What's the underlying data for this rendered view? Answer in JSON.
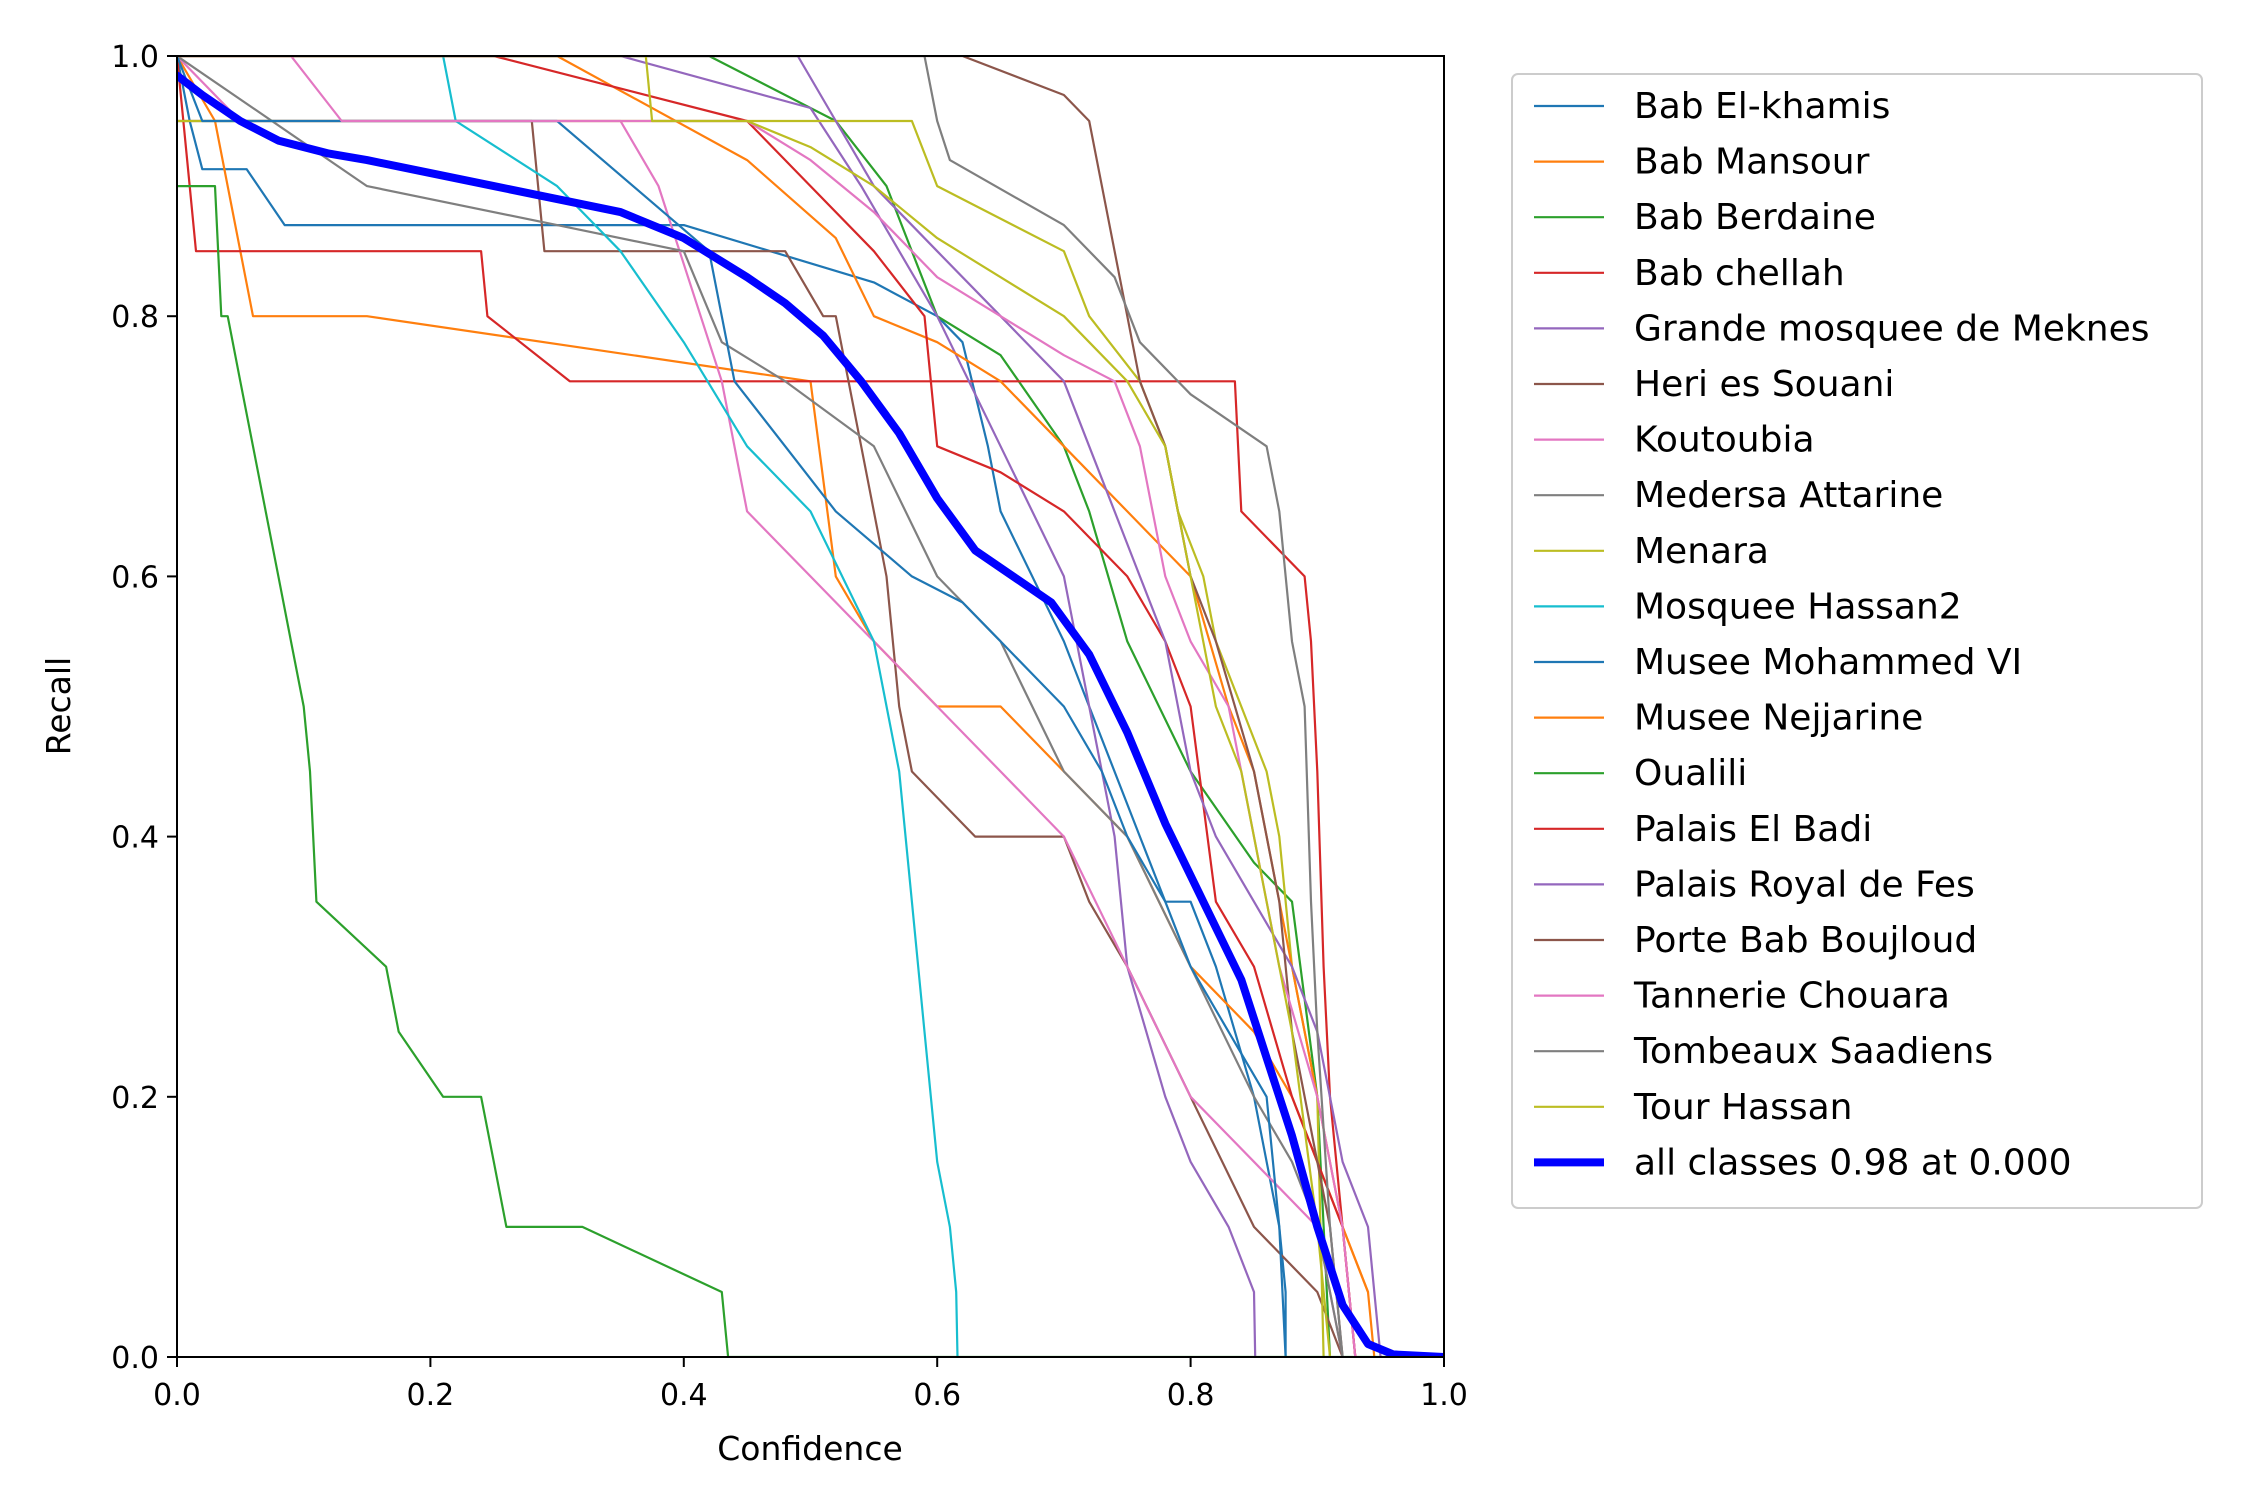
{
  "chart_data": {
    "type": "line",
    "title": "",
    "xlabel": "Confidence",
    "ylabel": "Recall",
    "xlim": [
      0,
      1
    ],
    "ylim": [
      0,
      1
    ],
    "xticks": [
      "0.0",
      "0.2",
      "0.4",
      "0.6",
      "0.8",
      "1.0"
    ],
    "yticks": [
      "0.0",
      "0.2",
      "0.4",
      "0.6",
      "0.8",
      "1.0"
    ],
    "grid": false,
    "legend_position": "outside-right",
    "series": [
      {
        "name": "Bab El-khamis",
        "color": "#1f77b4",
        "x": [
          0.0,
          0.01,
          0.02,
          0.055,
          0.085,
          0.4,
          0.55,
          0.6,
          0.62,
          0.64,
          0.65,
          0.7,
          0.72,
          0.76,
          0.78,
          0.8,
          0.82,
          0.85,
          0.87,
          0.875,
          0.875
        ],
        "y": [
          1.0,
          0.95,
          0.913,
          0.913,
          0.87,
          0.87,
          0.826,
          0.8,
          0.78,
          0.7,
          0.65,
          0.55,
          0.5,
          0.4,
          0.35,
          0.35,
          0.3,
          0.2,
          0.1,
          0.05,
          0.0
        ]
      },
      {
        "name": "Bab Mansour",
        "color": "#ff7f0e",
        "x": [
          0.0,
          0.03,
          0.06,
          0.15,
          0.5,
          0.52,
          0.55,
          0.6,
          0.65,
          0.7,
          0.75,
          0.8,
          0.85,
          0.88,
          0.9,
          0.92,
          0.94
        ],
        "y": [
          1.0,
          0.95,
          0.8,
          0.8,
          0.75,
          0.6,
          0.55,
          0.5,
          0.5,
          0.45,
          0.4,
          0.3,
          0.25,
          0.2,
          0.15,
          0.1,
          0.05
        ]
      },
      {
        "name": "Bab Berdaine",
        "color": "#2ca02c",
        "x": [
          0.0,
          0.12,
          0.42,
          0.52,
          0.56,
          0.6,
          0.65,
          0.7,
          0.72,
          0.75,
          0.8,
          0.85,
          0.88,
          0.9,
          0.91
        ],
        "y": [
          1.0,
          1.0,
          1.0,
          0.95,
          0.9,
          0.8,
          0.77,
          0.7,
          0.65,
          0.55,
          0.45,
          0.38,
          0.35,
          0.2,
          0.0
        ]
      },
      {
        "name": "Bab chellah",
        "color": "#d62728",
        "x": [
          0.0,
          0.01,
          0.015,
          0.24,
          0.245,
          0.31,
          0.835,
          0.84,
          0.89,
          0.895,
          0.9,
          0.905,
          0.91,
          0.92,
          0.93
        ],
        "y": [
          1.0,
          0.9,
          0.85,
          0.85,
          0.8,
          0.75,
          0.75,
          0.65,
          0.6,
          0.55,
          0.45,
          0.3,
          0.2,
          0.1,
          0.0
        ]
      },
      {
        "name": "Grande mosquee de Meknes",
        "color": "#9467bd",
        "x": [
          0.0,
          0.35,
          0.5,
          0.54,
          0.6,
          0.65,
          0.7,
          0.72,
          0.74,
          0.75,
          0.78,
          0.8,
          0.83,
          0.85,
          0.851
        ],
        "y": [
          1.0,
          1.0,
          0.96,
          0.9,
          0.8,
          0.7,
          0.6,
          0.5,
          0.4,
          0.3,
          0.2,
          0.15,
          0.1,
          0.05,
          0.0
        ]
      },
      {
        "name": "Heri es Souani",
        "color": "#8c564b",
        "x": [
          0.0,
          0.28,
          0.29,
          0.48,
          0.51,
          0.52,
          0.54,
          0.56,
          0.57,
          0.58,
          0.63,
          0.7,
          0.72,
          0.75,
          0.8,
          0.85,
          0.9,
          0.92
        ],
        "y": [
          0.95,
          0.95,
          0.85,
          0.85,
          0.8,
          0.8,
          0.7,
          0.6,
          0.5,
          0.45,
          0.4,
          0.4,
          0.35,
          0.3,
          0.2,
          0.1,
          0.05,
          0.0
        ]
      },
      {
        "name": "Koutoubia",
        "color": "#e377c2",
        "x": [
          0.0,
          0.05,
          0.35,
          0.38,
          0.43,
          0.45,
          0.5,
          0.55,
          0.6,
          0.65,
          0.7,
          0.75,
          0.8,
          0.85,
          0.9,
          0.92
        ],
        "y": [
          1.0,
          0.95,
          0.95,
          0.9,
          0.75,
          0.65,
          0.6,
          0.55,
          0.5,
          0.45,
          0.4,
          0.3,
          0.2,
          0.15,
          0.1,
          0.0
        ]
      },
      {
        "name": "Medersa Attarine",
        "color": "#7f7f7f",
        "x": [
          0.0,
          0.15,
          0.3,
          0.4,
          0.43,
          0.48,
          0.55,
          0.6,
          0.65,
          0.7,
          0.75,
          0.8,
          0.85,
          0.88,
          0.9,
          0.91,
          0.92
        ],
        "y": [
          1.0,
          0.9,
          0.87,
          0.85,
          0.78,
          0.75,
          0.7,
          0.6,
          0.55,
          0.45,
          0.4,
          0.3,
          0.2,
          0.15,
          0.1,
          0.05,
          0.0
        ]
      },
      {
        "name": "Menara",
        "color": "#bcbd22",
        "x": [
          0.0,
          0.37,
          0.58,
          0.6,
          0.7,
          0.72,
          0.76,
          0.78,
          0.79,
          0.81,
          0.82,
          0.84,
          0.86,
          0.87,
          0.88,
          0.9,
          0.905
        ],
        "y": [
          0.95,
          0.95,
          0.95,
          0.9,
          0.85,
          0.8,
          0.75,
          0.7,
          0.65,
          0.6,
          0.55,
          0.5,
          0.45,
          0.4,
          0.3,
          0.2,
          0.0
        ]
      },
      {
        "name": "Mosquee Hassan2",
        "color": "#17becf",
        "x": [
          0.0,
          0.21,
          0.22,
          0.3,
          0.35,
          0.4,
          0.45,
          0.5,
          0.55,
          0.57,
          0.58,
          0.59,
          0.6,
          0.61,
          0.615,
          0.616
        ],
        "y": [
          1.0,
          1.0,
          0.95,
          0.9,
          0.85,
          0.78,
          0.7,
          0.65,
          0.55,
          0.45,
          0.35,
          0.25,
          0.15,
          0.1,
          0.05,
          0.0
        ]
      },
      {
        "name": "Musee Mohammed VI",
        "color": "#1f77b4",
        "x": [
          0.0,
          0.02,
          0.13,
          0.3,
          0.42,
          0.44,
          0.48,
          0.52,
          0.58,
          0.62,
          0.65,
          0.68,
          0.7,
          0.73,
          0.75,
          0.78,
          0.8,
          0.83,
          0.86,
          0.87,
          0.875
        ],
        "y": [
          1.0,
          0.95,
          0.95,
          0.95,
          0.85,
          0.75,
          0.7,
          0.65,
          0.6,
          0.58,
          0.55,
          0.52,
          0.5,
          0.45,
          0.4,
          0.35,
          0.3,
          0.25,
          0.2,
          0.1,
          0.0
        ]
      },
      {
        "name": "Musee Nejjarine",
        "color": "#ff7f0e",
        "x": [
          0.0,
          0.3,
          0.45,
          0.52,
          0.55,
          0.6,
          0.65,
          0.7,
          0.75,
          0.8,
          0.83,
          0.85,
          0.88,
          0.9,
          0.92,
          0.94,
          0.945
        ],
        "y": [
          1.0,
          1.0,
          0.92,
          0.86,
          0.8,
          0.78,
          0.75,
          0.7,
          0.65,
          0.6,
          0.5,
          0.45,
          0.3,
          0.2,
          0.1,
          0.05,
          0.0
        ]
      },
      {
        "name": "Oualili",
        "color": "#2ca02c",
        "x": [
          0.0,
          0.01,
          0.03,
          0.035,
          0.04,
          0.05,
          0.06,
          0.07,
          0.08,
          0.09,
          0.1,
          0.105,
          0.11,
          0.165,
          0.175,
          0.21,
          0.24,
          0.25,
          0.26,
          0.32,
          0.43,
          0.435,
          1.0
        ],
        "y": [
          0.9,
          0.9,
          0.9,
          0.8,
          0.8,
          0.75,
          0.7,
          0.65,
          0.6,
          0.55,
          0.5,
          0.45,
          0.35,
          0.3,
          0.25,
          0.2,
          0.2,
          0.15,
          0.1,
          0.1,
          0.05,
          0.0,
          0.0
        ]
      },
      {
        "name": "Palais El Badi",
        "color": "#d62728",
        "x": [
          0.0,
          0.25,
          0.45,
          0.5,
          0.55,
          0.59,
          0.6,
          0.65,
          0.7,
          0.75,
          0.78,
          0.8,
          0.82,
          0.85,
          0.88,
          0.9,
          0.92,
          0.93
        ],
        "y": [
          1.0,
          1.0,
          0.95,
          0.9,
          0.85,
          0.8,
          0.7,
          0.68,
          0.65,
          0.6,
          0.55,
          0.5,
          0.35,
          0.3,
          0.2,
          0.15,
          0.1,
          0.0
        ]
      },
      {
        "name": "Palais Royal de Fes",
        "color": "#9467bd",
        "x": [
          0.0,
          0.49,
          0.52,
          0.55,
          0.6,
          0.65,
          0.7,
          0.72,
          0.74,
          0.76,
          0.78,
          0.8,
          0.82,
          0.85,
          0.88,
          0.9,
          0.92,
          0.94,
          0.95
        ],
        "y": [
          1.0,
          1.0,
          0.95,
          0.9,
          0.85,
          0.8,
          0.75,
          0.7,
          0.65,
          0.6,
          0.55,
          0.45,
          0.4,
          0.35,
          0.3,
          0.25,
          0.15,
          0.1,
          0.0
        ]
      },
      {
        "name": "Porte Bab Boujloud",
        "color": "#8c564b",
        "x": [
          0.0,
          0.62,
          0.7,
          0.72,
          0.73,
          0.74,
          0.75,
          0.76,
          0.78,
          0.8,
          0.82,
          0.85,
          0.87,
          0.88,
          0.9,
          0.91,
          0.92
        ],
        "y": [
          1.0,
          1.0,
          0.97,
          0.95,
          0.9,
          0.85,
          0.8,
          0.75,
          0.7,
          0.6,
          0.55,
          0.45,
          0.35,
          0.25,
          0.15,
          0.1,
          0.0
        ]
      },
      {
        "name": "Tannerie Chouara",
        "color": "#e377c2",
        "x": [
          0.0,
          0.01,
          0.09,
          0.13,
          0.13,
          0.45,
          0.5,
          0.55,
          0.6,
          0.65,
          0.7,
          0.74,
          0.76,
          0.78,
          0.8,
          0.83,
          0.87,
          0.9,
          0.92,
          0.93
        ],
        "y": [
          1.0,
          1.0,
          1.0,
          0.95,
          0.95,
          0.95,
          0.92,
          0.88,
          0.83,
          0.8,
          0.77,
          0.75,
          0.7,
          0.6,
          0.55,
          0.5,
          0.3,
          0.2,
          0.1,
          0.0
        ]
      },
      {
        "name": "Tombeaux Saadiens",
        "color": "#7f7f7f",
        "x": [
          0.0,
          0.59,
          0.6,
          0.61,
          0.7,
          0.74,
          0.76,
          0.8,
          0.86,
          0.87,
          0.88,
          0.89,
          0.895,
          0.9,
          0.91,
          0.92
        ],
        "y": [
          1.0,
          1.0,
          0.95,
          0.92,
          0.87,
          0.83,
          0.78,
          0.74,
          0.7,
          0.65,
          0.55,
          0.5,
          0.35,
          0.25,
          0.1,
          0.0
        ]
      },
      {
        "name": "Tour Hassan",
        "color": "#bcbd22",
        "x": [
          0.0,
          0.37,
          0.375,
          0.45,
          0.5,
          0.55,
          0.6,
          0.65,
          0.7,
          0.75,
          0.78,
          0.8,
          0.82,
          0.84,
          0.86,
          0.88,
          0.9,
          0.91
        ],
        "y": [
          1.0,
          1.0,
          0.95,
          0.95,
          0.93,
          0.9,
          0.86,
          0.83,
          0.8,
          0.75,
          0.7,
          0.6,
          0.5,
          0.45,
          0.35,
          0.25,
          0.1,
          0.0
        ]
      },
      {
        "name": "all classes 0.98 at 0.000",
        "color": "#0000ff",
        "bold": true,
        "x": [
          0.0,
          0.02,
          0.05,
          0.08,
          0.1,
          0.12,
          0.15,
          0.2,
          0.25,
          0.3,
          0.35,
          0.4,
          0.45,
          0.48,
          0.51,
          0.54,
          0.57,
          0.6,
          0.63,
          0.66,
          0.69,
          0.72,
          0.75,
          0.78,
          0.81,
          0.84,
          0.86,
          0.88,
          0.9,
          0.92,
          0.94,
          0.96,
          1.0
        ],
        "y": [
          0.985,
          0.97,
          0.95,
          0.935,
          0.93,
          0.925,
          0.92,
          0.91,
          0.9,
          0.89,
          0.88,
          0.86,
          0.83,
          0.81,
          0.785,
          0.75,
          0.71,
          0.66,
          0.62,
          0.6,
          0.58,
          0.54,
          0.48,
          0.41,
          0.35,
          0.29,
          0.23,
          0.17,
          0.1,
          0.04,
          0.01,
          0.002,
          0.0
        ]
      }
    ]
  }
}
